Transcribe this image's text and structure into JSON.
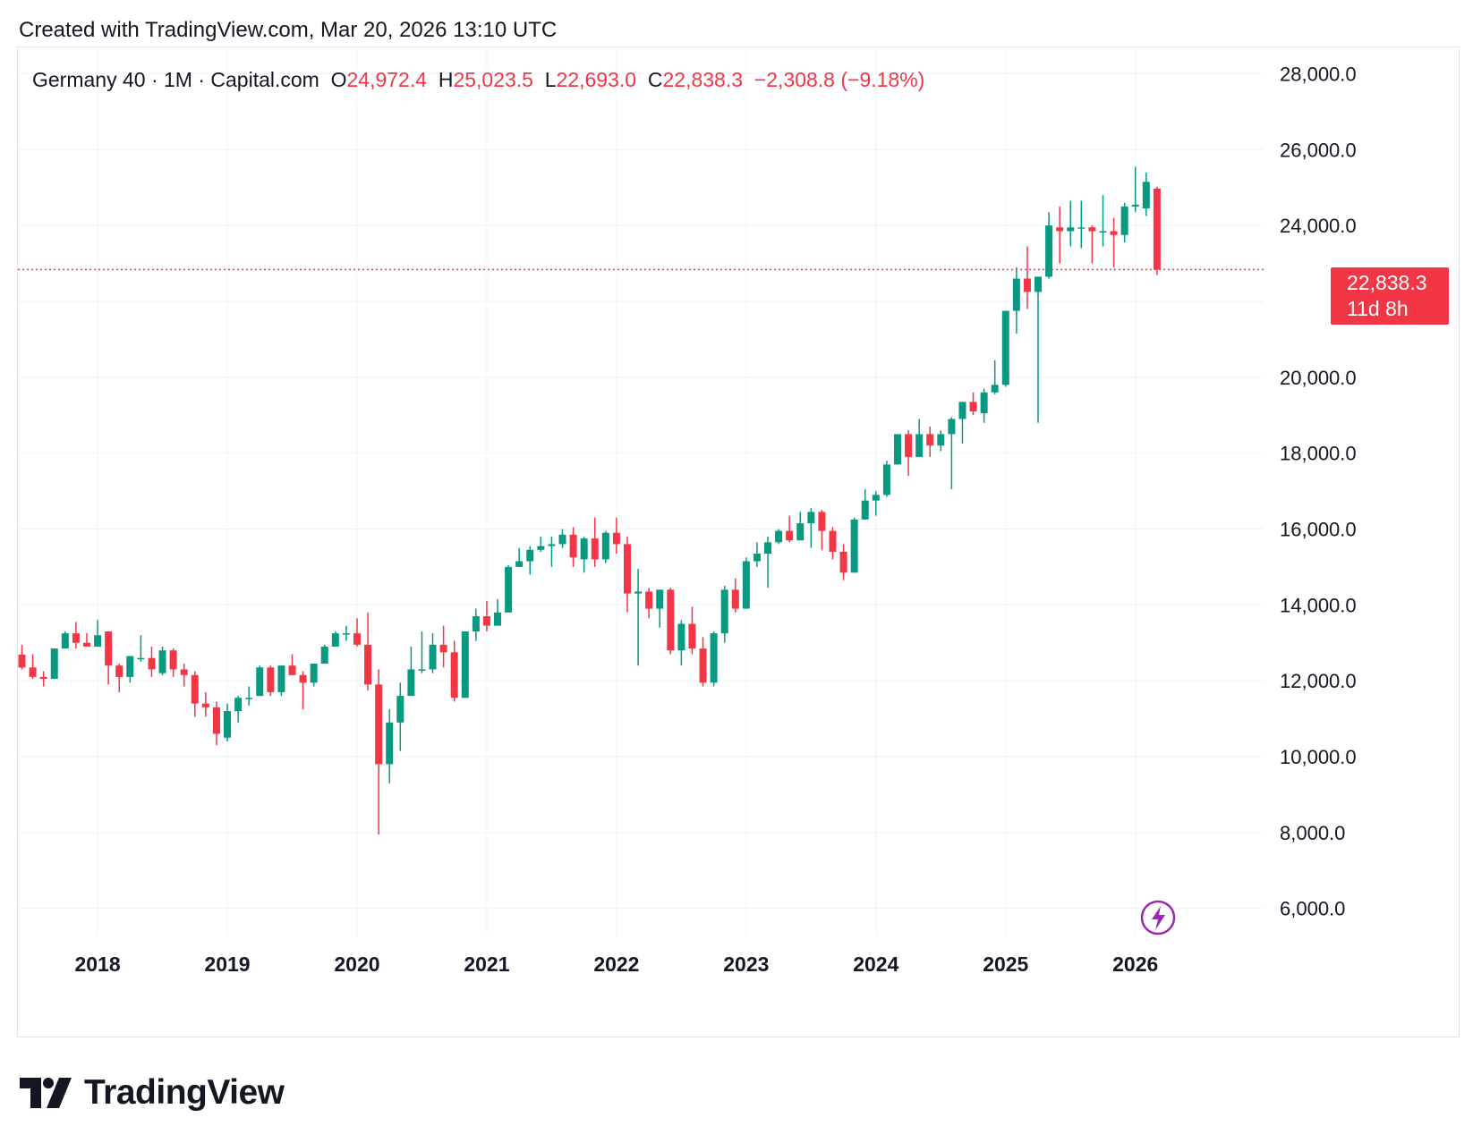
{
  "header": {
    "created_text": "Created with TradingView.com, Mar 20, 2026 13:10 UTC"
  },
  "legend": {
    "symbol": "Germany 40 · 1M · Capital.com",
    "open_label": "O",
    "open_value": "24,972.4",
    "high_label": "H",
    "high_value": "25,023.5",
    "low_label": "L",
    "low_value": "22,693.0",
    "close_label": "C",
    "close_value": "22,838.3",
    "change": "−2,308.8 (−9.18%)"
  },
  "price_badge": {
    "price": "22,838.3",
    "countdown": "11d 8h"
  },
  "footer": {
    "brand": "TradingView"
  },
  "colors": {
    "up": "#089981",
    "down": "#f23645",
    "grid": "#f0f3fa",
    "axis_text": "#131722",
    "lightning_icon": "#9c27b0"
  },
  "chart_data": {
    "type": "candlestick",
    "title": "Germany 40 · 1M · Capital.com",
    "interval": "1M",
    "y_axis": {
      "range": [
        5000,
        28500
      ],
      "ticks": [
        6000,
        8000,
        10000,
        12000,
        14000,
        16000,
        18000,
        20000,
        24000,
        26000,
        28000
      ],
      "tick_labels": [
        "6,000.0",
        "8,000.0",
        "10,000.0",
        "12,000.0",
        "14,000.0",
        "16,000.0",
        "18,000.0",
        "20,000.0",
        "24,000.0",
        "26,000.0",
        "28,000.0"
      ],
      "position": "right"
    },
    "x_axis": {
      "start_month": "2017-06",
      "years": [
        "2018",
        "2019",
        "2020",
        "2021",
        "2022",
        "2023",
        "2024",
        "2025",
        "2026"
      ]
    },
    "current_price": 22838.3,
    "candles": [
      {
        "m": "2017-06",
        "o": 12690,
        "h": 12950,
        "l": 12300,
        "c": 12350
      },
      {
        "m": "2017-07",
        "o": 12350,
        "h": 12700,
        "l": 12050,
        "c": 12100
      },
      {
        "m": "2017-08",
        "o": 12100,
        "h": 12250,
        "l": 11850,
        "c": 12050
      },
      {
        "m": "2017-09",
        "o": 12050,
        "h": 12850,
        "l": 12050,
        "c": 12850
      },
      {
        "m": "2017-10",
        "o": 12850,
        "h": 13300,
        "l": 12850,
        "c": 13250
      },
      {
        "m": "2017-11",
        "o": 13250,
        "h": 13550,
        "l": 12850,
        "c": 13000
      },
      {
        "m": "2017-12",
        "o": 13000,
        "h": 13250,
        "l": 12900,
        "c": 12900
      },
      {
        "m": "2018-01",
        "o": 12900,
        "h": 13600,
        "l": 12900,
        "c": 13200
      },
      {
        "m": "2018-02",
        "o": 13300,
        "h": 13300,
        "l": 11900,
        "c": 12400
      },
      {
        "m": "2018-03",
        "o": 12400,
        "h": 12450,
        "l": 11700,
        "c": 12100
      },
      {
        "m": "2018-04",
        "o": 12100,
        "h": 12650,
        "l": 11950,
        "c": 12650
      },
      {
        "m": "2018-05",
        "o": 12600,
        "h": 13200,
        "l": 12500,
        "c": 12600
      },
      {
        "m": "2018-06",
        "o": 12600,
        "h": 12900,
        "l": 12100,
        "c": 12300
      },
      {
        "m": "2018-07",
        "o": 12200,
        "h": 12900,
        "l": 12150,
        "c": 12800
      },
      {
        "m": "2018-08",
        "o": 12800,
        "h": 12850,
        "l": 12100,
        "c": 12300
      },
      {
        "m": "2018-09",
        "o": 12300,
        "h": 12450,
        "l": 11850,
        "c": 12150
      },
      {
        "m": "2018-10",
        "o": 12150,
        "h": 12250,
        "l": 11050,
        "c": 11400
      },
      {
        "m": "2018-11",
        "o": 11400,
        "h": 11700,
        "l": 11050,
        "c": 11300
      },
      {
        "m": "2018-12",
        "o": 11300,
        "h": 11450,
        "l": 10300,
        "c": 10600
      },
      {
        "m": "2019-01",
        "o": 10500,
        "h": 11400,
        "l": 10400,
        "c": 11200
      },
      {
        "m": "2019-02",
        "o": 11200,
        "h": 11600,
        "l": 10900,
        "c": 11550
      },
      {
        "m": "2019-03",
        "o": 11550,
        "h": 11850,
        "l": 11350,
        "c": 11550
      },
      {
        "m": "2019-04",
        "o": 11600,
        "h": 12400,
        "l": 11600,
        "c": 12350
      },
      {
        "m": "2019-05",
        "o": 12350,
        "h": 12400,
        "l": 11600,
        "c": 11700
      },
      {
        "m": "2019-06",
        "o": 11700,
        "h": 12400,
        "l": 11600,
        "c": 12400
      },
      {
        "m": "2019-07",
        "o": 12400,
        "h": 12700,
        "l": 12150,
        "c": 12150
      },
      {
        "m": "2019-08",
        "o": 12150,
        "h": 12250,
        "l": 11250,
        "c": 11950
      },
      {
        "m": "2019-09",
        "o": 11950,
        "h": 12450,
        "l": 11850,
        "c": 12450
      },
      {
        "m": "2019-10",
        "o": 12450,
        "h": 12950,
        "l": 12450,
        "c": 12900
      },
      {
        "m": "2019-11",
        "o": 12900,
        "h": 13300,
        "l": 12900,
        "c": 13250
      },
      {
        "m": "2019-12",
        "o": 13250,
        "h": 13450,
        "l": 13050,
        "c": 13250
      },
      {
        "m": "2020-01",
        "o": 13250,
        "h": 13650,
        "l": 12900,
        "c": 12950
      },
      {
        "m": "2020-02",
        "o": 12950,
        "h": 13800,
        "l": 11750,
        "c": 11900
      },
      {
        "m": "2020-03",
        "o": 11900,
        "h": 12300,
        "l": 7950,
        "c": 9800
      },
      {
        "m": "2020-04",
        "o": 9800,
        "h": 11250,
        "l": 9300,
        "c": 10900
      },
      {
        "m": "2020-05",
        "o": 10900,
        "h": 11950,
        "l": 10150,
        "c": 11600
      },
      {
        "m": "2020-06",
        "o": 11600,
        "h": 12900,
        "l": 11600,
        "c": 12300
      },
      {
        "m": "2020-07",
        "o": 12300,
        "h": 13300,
        "l": 12200,
        "c": 12300
      },
      {
        "m": "2020-08",
        "o": 12300,
        "h": 13250,
        "l": 12200,
        "c": 12950
      },
      {
        "m": "2020-09",
        "o": 12950,
        "h": 13450,
        "l": 12350,
        "c": 12750
      },
      {
        "m": "2020-10",
        "o": 12750,
        "h": 13050,
        "l": 11450,
        "c": 11550
      },
      {
        "m": "2020-11",
        "o": 11550,
        "h": 13300,
        "l": 11550,
        "c": 13300
      },
      {
        "m": "2020-12",
        "o": 13300,
        "h": 13900,
        "l": 13050,
        "c": 13700
      },
      {
        "m": "2021-01",
        "o": 13700,
        "h": 14100,
        "l": 13300,
        "c": 13450
      },
      {
        "m": "2021-02",
        "o": 13450,
        "h": 14150,
        "l": 13450,
        "c": 13800
      },
      {
        "m": "2021-03",
        "o": 13800,
        "h": 15050,
        "l": 13800,
        "c": 15000
      },
      {
        "m": "2021-04",
        "o": 15000,
        "h": 15500,
        "l": 15000,
        "c": 15150
      },
      {
        "m": "2021-05",
        "o": 15150,
        "h": 15550,
        "l": 14800,
        "c": 15450
      },
      {
        "m": "2021-06",
        "o": 15450,
        "h": 15800,
        "l": 15400,
        "c": 15550
      },
      {
        "m": "2021-07",
        "o": 15550,
        "h": 15800,
        "l": 15000,
        "c": 15600
      },
      {
        "m": "2021-08",
        "o": 15600,
        "h": 16000,
        "l": 15500,
        "c": 15850
      },
      {
        "m": "2021-09",
        "o": 15850,
        "h": 16050,
        "l": 15000,
        "c": 15250
      },
      {
        "m": "2021-10",
        "o": 15200,
        "h": 15800,
        "l": 14850,
        "c": 15750
      },
      {
        "m": "2021-11",
        "o": 15750,
        "h": 16300,
        "l": 15000,
        "c": 15200
      },
      {
        "m": "2021-12",
        "o": 15200,
        "h": 15950,
        "l": 15100,
        "c": 15900
      },
      {
        "m": "2022-01",
        "o": 15900,
        "h": 16300,
        "l": 15350,
        "c": 15600
      },
      {
        "m": "2022-02",
        "o": 15600,
        "h": 15800,
        "l": 13800,
        "c": 14300
      },
      {
        "m": "2022-03",
        "o": 14300,
        "h": 14950,
        "l": 12400,
        "c": 14350
      },
      {
        "m": "2022-04",
        "o": 14350,
        "h": 14450,
        "l": 13650,
        "c": 13900
      },
      {
        "m": "2022-05",
        "o": 13900,
        "h": 14400,
        "l": 13400,
        "c": 14400
      },
      {
        "m": "2022-06",
        "o": 14400,
        "h": 14450,
        "l": 12700,
        "c": 12800
      },
      {
        "m": "2022-07",
        "o": 12800,
        "h": 13600,
        "l": 12400,
        "c": 13500
      },
      {
        "m": "2022-08",
        "o": 13500,
        "h": 13950,
        "l": 12700,
        "c": 12850
      },
      {
        "m": "2022-09",
        "o": 12850,
        "h": 13150,
        "l": 11850,
        "c": 11950
      },
      {
        "m": "2022-10",
        "o": 11950,
        "h": 13300,
        "l": 11850,
        "c": 13250
      },
      {
        "m": "2022-11",
        "o": 13250,
        "h": 14500,
        "l": 13000,
        "c": 14400
      },
      {
        "m": "2022-12",
        "o": 14400,
        "h": 14700,
        "l": 13800,
        "c": 13900
      },
      {
        "m": "2023-01",
        "o": 13900,
        "h": 15250,
        "l": 13900,
        "c": 15150
      },
      {
        "m": "2023-02",
        "o": 15150,
        "h": 15650,
        "l": 15000,
        "c": 15350
      },
      {
        "m": "2023-03",
        "o": 15350,
        "h": 15800,
        "l": 14450,
        "c": 15650
      },
      {
        "m": "2023-04",
        "o": 15650,
        "h": 16000,
        "l": 15600,
        "c": 15950
      },
      {
        "m": "2023-05",
        "o": 15950,
        "h": 16350,
        "l": 15650,
        "c": 15700
      },
      {
        "m": "2023-06",
        "o": 15700,
        "h": 16450,
        "l": 15700,
        "c": 16150
      },
      {
        "m": "2023-07",
        "o": 16150,
        "h": 16550,
        "l": 15500,
        "c": 16450
      },
      {
        "m": "2023-08",
        "o": 16450,
        "h": 16500,
        "l": 15450,
        "c": 15950
      },
      {
        "m": "2023-09",
        "o": 15950,
        "h": 16050,
        "l": 15200,
        "c": 15400
      },
      {
        "m": "2023-10",
        "o": 15400,
        "h": 15600,
        "l": 14650,
        "c": 14850
      },
      {
        "m": "2023-11",
        "o": 14850,
        "h": 16300,
        "l": 14850,
        "c": 16250
      },
      {
        "m": "2023-12",
        "o": 16250,
        "h": 17050,
        "l": 16250,
        "c": 16750
      },
      {
        "m": "2024-01",
        "o": 16750,
        "h": 17000,
        "l": 16350,
        "c": 16900
      },
      {
        "m": "2024-02",
        "o": 16900,
        "h": 17800,
        "l": 16850,
        "c": 17700
      },
      {
        "m": "2024-03",
        "o": 17700,
        "h": 18500,
        "l": 17700,
        "c": 18500
      },
      {
        "m": "2024-04",
        "o": 18500,
        "h": 18600,
        "l": 17400,
        "c": 17900
      },
      {
        "m": "2024-05",
        "o": 17900,
        "h": 18900,
        "l": 17900,
        "c": 18500
      },
      {
        "m": "2024-06",
        "o": 18500,
        "h": 18700,
        "l": 17900,
        "c": 18200
      },
      {
        "m": "2024-07",
        "o": 18200,
        "h": 18600,
        "l": 18050,
        "c": 18500
      },
      {
        "m": "2024-08",
        "o": 18500,
        "h": 18950,
        "l": 17050,
        "c": 18900
      },
      {
        "m": "2024-09",
        "o": 18900,
        "h": 19350,
        "l": 18250,
        "c": 19350
      },
      {
        "m": "2024-10",
        "o": 19350,
        "h": 19600,
        "l": 19000,
        "c": 19100
      },
      {
        "m": "2024-11",
        "o": 19050,
        "h": 19700,
        "l": 18800,
        "c": 19600
      },
      {
        "m": "2024-12",
        "o": 19600,
        "h": 20450,
        "l": 19550,
        "c": 19800
      },
      {
        "m": "2025-01",
        "o": 19800,
        "h": 21700,
        "l": 19750,
        "c": 21750
      },
      {
        "m": "2025-02",
        "o": 21750,
        "h": 22900,
        "l": 21150,
        "c": 22600
      },
      {
        "m": "2025-03",
        "o": 22600,
        "h": 23450,
        "l": 21800,
        "c": 22250
      },
      {
        "m": "2025-04",
        "o": 22250,
        "h": 22650,
        "l": 18800,
        "c": 22650
      },
      {
        "m": "2025-05",
        "o": 22650,
        "h": 24350,
        "l": 22600,
        "c": 24000
      },
      {
        "m": "2025-06",
        "o": 23950,
        "h": 24500,
        "l": 23000,
        "c": 23850
      },
      {
        "m": "2025-07",
        "o": 23850,
        "h": 24650,
        "l": 23450,
        "c": 23950
      },
      {
        "m": "2025-08",
        "o": 23950,
        "h": 24650,
        "l": 23400,
        "c": 23950
      },
      {
        "m": "2025-09",
        "o": 23950,
        "h": 24000,
        "l": 23000,
        "c": 23850
      },
      {
        "m": "2025-10",
        "o": 23850,
        "h": 24800,
        "l": 23450,
        "c": 23850
      },
      {
        "m": "2025-11",
        "o": 23850,
        "h": 24200,
        "l": 22900,
        "c": 23750
      },
      {
        "m": "2025-12",
        "o": 23750,
        "h": 24600,
        "l": 23550,
        "c": 24500
      },
      {
        "m": "2026-01",
        "o": 24500,
        "h": 25550,
        "l": 24350,
        "c": 24550
      },
      {
        "m": "2026-02",
        "o": 24450,
        "h": 25400,
        "l": 24250,
        "c": 25150
      },
      {
        "m": "2026-03",
        "o": 24972.4,
        "h": 25023.5,
        "l": 22693.0,
        "c": 22838.3
      }
    ]
  }
}
